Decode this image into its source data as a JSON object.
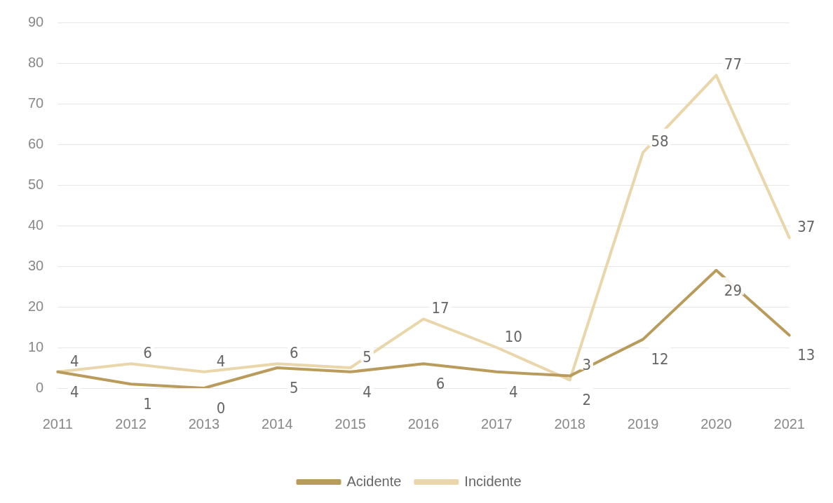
{
  "chart_data": {
    "type": "line",
    "categories": [
      "2011",
      "2012",
      "2013",
      "2014",
      "2015",
      "2016",
      "2017",
      "2018",
      "2019",
      "2020",
      "2021"
    ],
    "series": [
      {
        "name": "Acidente",
        "color": "#b99b5c",
        "values": [
          4,
          1,
          0,
          5,
          4,
          6,
          4,
          3,
          12,
          29,
          13
        ]
      },
      {
        "name": "Incidente",
        "color": "#e9d6aa",
        "values": [
          4,
          6,
          4,
          6,
          5,
          17,
          10,
          2,
          58,
          77,
          37
        ]
      }
    ],
    "ylim": [
      0,
      90
    ],
    "yticks": [
      0,
      10,
      20,
      30,
      40,
      50,
      60,
      70,
      80,
      90
    ],
    "grid": "y",
    "legend": "bottom",
    "data_labels": true,
    "marker": "none",
    "line_style": "solid"
  }
}
